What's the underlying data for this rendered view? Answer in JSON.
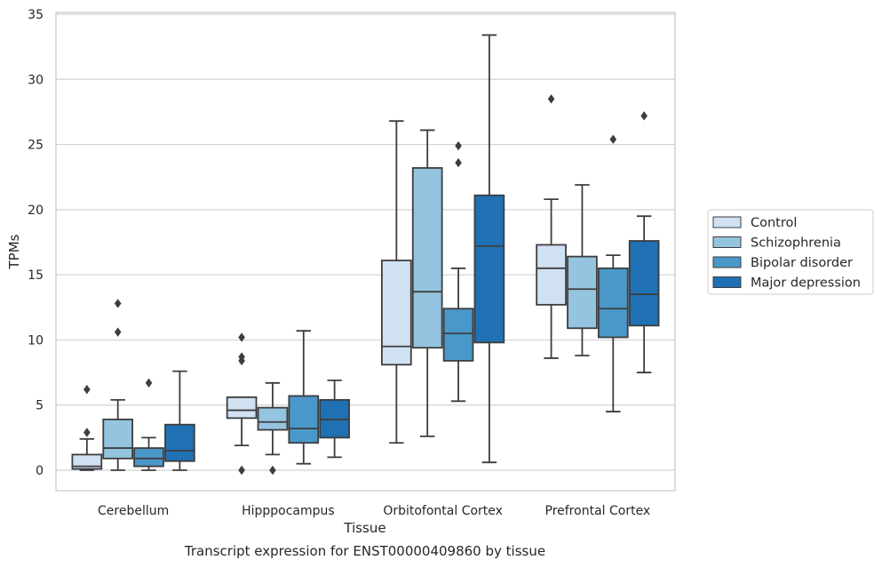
{
  "chart_data": {
    "type": "box",
    "title": "",
    "caption": "Transcript expression for ENST00000409860 by tissue",
    "xlabel": "Tissue",
    "ylabel": "TPMs",
    "ylim": [
      -1.5,
      35.3
    ],
    "yticks": [
      0,
      5,
      10,
      15,
      20,
      25,
      30,
      35
    ],
    "grid": "horizontal",
    "legend_position": "right",
    "categories": [
      "Cerebellum",
      "Hipppocampus",
      "Orbitofontal Cortex",
      "Prefrontal Cortex"
    ],
    "series": [
      {
        "name": "Control",
        "color": "#d0e1f2",
        "boxes": [
          {
            "whislo": 0.0,
            "q1": 0.1,
            "med": 0.3,
            "q3": 1.2,
            "whishi": 2.4,
            "fliers": [
              2.9,
              6.2
            ]
          },
          {
            "whislo": 1.9,
            "q1": 4.0,
            "med": 4.6,
            "q3": 5.6,
            "whishi": 5.6,
            "fliers": [
              0.0,
              8.4,
              8.7,
              10.2
            ]
          },
          {
            "whislo": 2.1,
            "q1": 8.1,
            "med": 9.5,
            "q3": 16.1,
            "whishi": 26.8,
            "fliers": []
          },
          {
            "whislo": 8.6,
            "q1": 12.7,
            "med": 15.5,
            "q3": 17.3,
            "whishi": 20.8,
            "fliers": [
              28.5
            ]
          }
        ]
      },
      {
        "name": "Schizophrenia",
        "color": "#94c4df",
        "boxes": [
          {
            "whislo": 0.0,
            "q1": 0.9,
            "med": 1.7,
            "q3": 3.9,
            "whishi": 5.4,
            "fliers": [
              10.6,
              12.8
            ]
          },
          {
            "whislo": 1.2,
            "q1": 3.1,
            "med": 3.7,
            "q3": 4.8,
            "whishi": 6.7,
            "fliers": [
              0.0
            ]
          },
          {
            "whislo": 2.6,
            "q1": 9.4,
            "med": 13.7,
            "q3": 23.2,
            "whishi": 26.1,
            "fliers": []
          },
          {
            "whislo": 8.8,
            "q1": 10.9,
            "med": 13.9,
            "q3": 16.4,
            "whishi": 21.9,
            "fliers": []
          }
        ]
      },
      {
        "name": "Bipolar disorder",
        "color": "#4a98c9",
        "boxes": [
          {
            "whislo": 0.0,
            "q1": 0.3,
            "med": 0.9,
            "q3": 1.7,
            "whishi": 2.5,
            "fliers": [
              6.7
            ]
          },
          {
            "whislo": 0.5,
            "q1": 2.1,
            "med": 3.2,
            "q3": 5.7,
            "whishi": 10.7,
            "fliers": []
          },
          {
            "whislo": 5.3,
            "q1": 8.4,
            "med": 10.5,
            "q3": 12.4,
            "whishi": 15.5,
            "fliers": [
              23.6,
              24.9
            ]
          },
          {
            "whislo": 4.5,
            "q1": 10.2,
            "med": 12.4,
            "q3": 15.5,
            "whishi": 16.5,
            "fliers": [
              25.4
            ]
          }
        ]
      },
      {
        "name": "Major depression",
        "color": "#2070b4",
        "boxes": [
          {
            "whislo": 0.0,
            "q1": 0.7,
            "med": 1.5,
            "q3": 3.5,
            "whishi": 7.6,
            "fliers": []
          },
          {
            "whislo": 1.0,
            "q1": 2.5,
            "med": 3.9,
            "q3": 5.4,
            "whishi": 6.9,
            "fliers": []
          },
          {
            "whislo": 0.6,
            "q1": 9.8,
            "med": 17.2,
            "q3": 21.1,
            "whishi": 33.4,
            "fliers": []
          },
          {
            "whislo": 7.5,
            "q1": 11.1,
            "med": 13.5,
            "q3": 17.6,
            "whishi": 19.5,
            "fliers": [
              27.2
            ]
          }
        ]
      }
    ]
  }
}
